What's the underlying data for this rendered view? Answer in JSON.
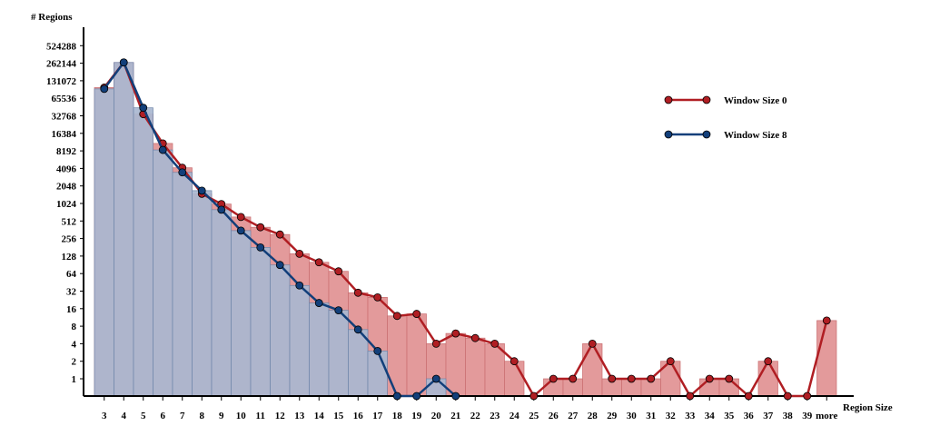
{
  "chart_data": {
    "type": "bar",
    "title": "",
    "ylabel": "# Regions",
    "xlabel": "Region Size",
    "yscale": "log2",
    "ylim": [
      0.5,
      1048576
    ],
    "y_ticks": [
      "1",
      "2",
      "4",
      "8",
      "16",
      "32",
      "64",
      "128",
      "256",
      "512",
      "1024",
      "2048",
      "4096",
      "8192",
      "16384",
      "32768",
      "65536",
      "131072",
      "262144",
      "524288"
    ],
    "categories": [
      "3",
      "4",
      "5",
      "6",
      "7",
      "8",
      "9",
      "10",
      "11",
      "12",
      "13",
      "14",
      "15",
      "16",
      "17",
      "18",
      "19",
      "20",
      "21",
      "22",
      "23",
      "24",
      "25",
      "26",
      "27",
      "28",
      "29",
      "30",
      "31",
      "32",
      "33",
      "34",
      "35",
      "36",
      "37",
      "38",
      "39",
      "more"
    ],
    "legend_position": "top-right",
    "series": [
      {
        "name": "Window Size 0",
        "color": "#b01e23",
        "bar_color": "#e39a9b",
        "values": [
          100000,
          270000,
          35000,
          11000,
          4200,
          1500,
          1000,
          600,
          400,
          300,
          140,
          100,
          70,
          30,
          25,
          12,
          13,
          4,
          6,
          5,
          4,
          2,
          0,
          1,
          1,
          4,
          1,
          1,
          1,
          2,
          0,
          1,
          1,
          0,
          2,
          0,
          0,
          10
        ]
      },
      {
        "name": "Window Size 8",
        "color": "#123f7a",
        "bar_color": "#a9b7d0",
        "values": [
          95000,
          270000,
          45000,
          8500,
          3500,
          1700,
          800,
          350,
          180,
          90,
          40,
          20,
          15,
          7,
          3,
          0,
          0,
          1,
          0,
          null,
          null,
          null,
          null,
          null,
          null,
          null,
          null,
          null,
          null,
          null,
          null,
          null,
          null,
          null,
          null,
          null,
          null,
          null
        ]
      }
    ]
  }
}
